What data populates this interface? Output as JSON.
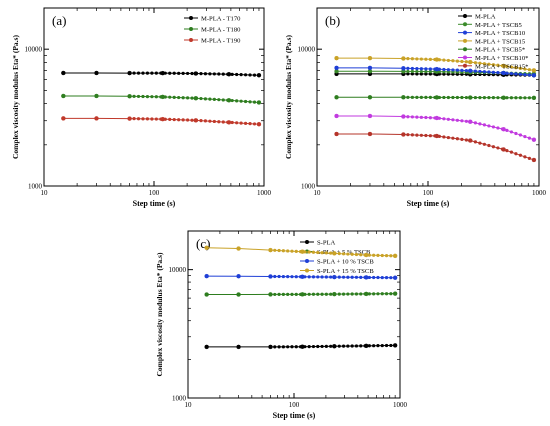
{
  "chart_data": [
    {
      "type": "line",
      "panel_label": "(a)",
      "xlabel": "Step time (s)",
      "ylabel": "Complex viscosity modulus Eta* (Pa.s)",
      "xscale": "log",
      "yscale": "log",
      "xlim": [
        10,
        1000
      ],
      "ylim": [
        1000,
        20000
      ],
      "x_tick_labels": [
        "10",
        "100",
        "1000"
      ],
      "y_tick_labels": [
        "1000",
        "10000"
      ],
      "legend_placement": "top-right",
      "series": [
        {
          "name": "M-PLA - T170",
          "color": "#000000",
          "x": [
            15,
            30,
            60,
            120,
            240,
            480,
            900
          ],
          "values": [
            6700,
            6700,
            6690,
            6680,
            6640,
            6560,
            6450
          ]
        },
        {
          "name": "M-PLA - T180",
          "color": "#2e7d1f",
          "x": [
            15,
            30,
            60,
            120,
            240,
            480,
            900
          ],
          "values": [
            4550,
            4550,
            4530,
            4480,
            4380,
            4230,
            4080
          ]
        },
        {
          "name": "M-PLA - T190",
          "color": "#c0392b",
          "x": [
            15,
            30,
            60,
            120,
            240,
            480,
            900
          ],
          "values": [
            3120,
            3120,
            3110,
            3080,
            3020,
            2920,
            2830
          ]
        }
      ]
    },
    {
      "type": "line",
      "panel_label": "(b)",
      "xlabel": "Step time (s)",
      "ylabel": "Complex viscosity modulus Eta* (Pa.s)",
      "xscale": "log",
      "yscale": "log",
      "xlim": [
        10,
        1000
      ],
      "ylim": [
        1000,
        20000
      ],
      "x_tick_labels": [
        "10",
        "100",
        "1000"
      ],
      "y_tick_labels": [
        "1000",
        "10000"
      ],
      "legend_placement": "top-right",
      "series": [
        {
          "name": "M-PLA",
          "color": "#000000",
          "x": [
            15,
            30,
            60,
            120,
            240,
            480,
            900
          ],
          "values": [
            6600,
            6600,
            6600,
            6580,
            6550,
            6500,
            6450
          ]
        },
        {
          "name": "M-PLA + TSCB5",
          "color": "#3a8a2a",
          "x": [
            15,
            30,
            60,
            120,
            240,
            480,
            900
          ],
          "values": [
            6900,
            6900,
            6880,
            6850,
            6780,
            6700,
            6600
          ]
        },
        {
          "name": "M-PLA + TSCB10",
          "color": "#1f3fd6",
          "x": [
            15,
            30,
            60,
            120,
            240,
            480,
            900
          ],
          "values": [
            7300,
            7300,
            7250,
            7150,
            6950,
            6700,
            6450
          ]
        },
        {
          "name": "M-PLA + TSCB15",
          "color": "#c9a227",
          "x": [
            15,
            30,
            60,
            120,
            240,
            480,
            900
          ],
          "values": [
            8600,
            8600,
            8550,
            8400,
            8050,
            7550,
            7000
          ]
        },
        {
          "name": "M-PLA + TSCB5*",
          "color": "#2e7d1f",
          "x": [
            15,
            30,
            60,
            120,
            240,
            480,
            900
          ],
          "values": [
            4450,
            4450,
            4450,
            4440,
            4430,
            4420,
            4410
          ]
        },
        {
          "name": "M-PLA + TSCB10*",
          "color": "#c13adf",
          "x": [
            15,
            30,
            60,
            120,
            240,
            480,
            900
          ],
          "values": [
            3250,
            3250,
            3220,
            3140,
            2950,
            2600,
            2180
          ]
        },
        {
          "name": "M-PLA + TSCB15*",
          "color": "#b5342a",
          "x": [
            15,
            30,
            60,
            120,
            240,
            480,
            900
          ],
          "values": [
            2400,
            2400,
            2380,
            2320,
            2150,
            1850,
            1550
          ]
        }
      ]
    },
    {
      "type": "line",
      "panel_label": "(c)",
      "xlabel": "Step time (s)",
      "ylabel": "Complex viscosity modulus Eta* (Pa.s)",
      "xscale": "log",
      "yscale": "log",
      "xlim": [
        10,
        1000
      ],
      "ylim": [
        1000,
        20000
      ],
      "x_tick_labels": [
        "10",
        "100",
        "1000"
      ],
      "y_tick_labels": [
        "1000",
        "10000"
      ],
      "legend_placement": "top-right",
      "series": [
        {
          "name": "S-PLA",
          "color": "#000000",
          "x": [
            15,
            30,
            60,
            120,
            240,
            480,
            900
          ],
          "values": [
            2500,
            2500,
            2500,
            2510,
            2530,
            2550,
            2570
          ]
        },
        {
          "name": "S-PLA + 5 % TSCB",
          "color": "#2e7d1f",
          "x": [
            15,
            30,
            60,
            120,
            240,
            480,
            900
          ],
          "values": [
            6400,
            6400,
            6410,
            6420,
            6440,
            6470,
            6500
          ]
        },
        {
          "name": "S-PLA + 10 % TSCB",
          "color": "#1f3fd6",
          "x": [
            15,
            30,
            60,
            120,
            240,
            480,
            900
          ],
          "values": [
            8900,
            8890,
            8850,
            8800,
            8750,
            8700,
            8650
          ]
        },
        {
          "name": "S-PLA + 15 % TSCB",
          "color": "#c9a227",
          "x": [
            15,
            30,
            60,
            120,
            240,
            480,
            900
          ],
          "values": [
            14800,
            14600,
            14200,
            13800,
            13400,
            13000,
            12800
          ]
        }
      ]
    }
  ]
}
